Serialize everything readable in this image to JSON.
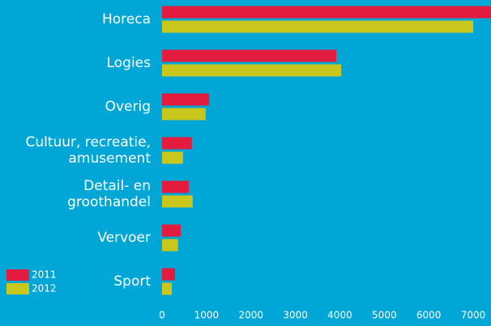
{
  "chart_data": {
    "type": "bar",
    "orientation": "horizontal",
    "categories": [
      [
        "Horeca"
      ],
      [
        "Logies"
      ],
      [
        "Overig"
      ],
      [
        "Cultuur, recreatie,",
        "amusement"
      ],
      [
        "Detail- en",
        "groothandel"
      ],
      [
        "Vervoer"
      ],
      [
        "Sport"
      ]
    ],
    "series": [
      {
        "name": "2011",
        "color": "#e31b3f",
        "values": [
          7500,
          3920,
          1060,
          670,
          600,
          420,
          290
        ]
      },
      {
        "name": "2012",
        "color": "#c9c71d",
        "values": [
          7000,
          4030,
          980,
          470,
          690,
          360,
          220
        ]
      }
    ],
    "xlim": [
      0,
      7400
    ],
    "xticks": [
      0,
      1000,
      2000,
      3000,
      4000,
      5000,
      6000,
      7000
    ],
    "grid": false,
    "legend": "lower left"
  }
}
